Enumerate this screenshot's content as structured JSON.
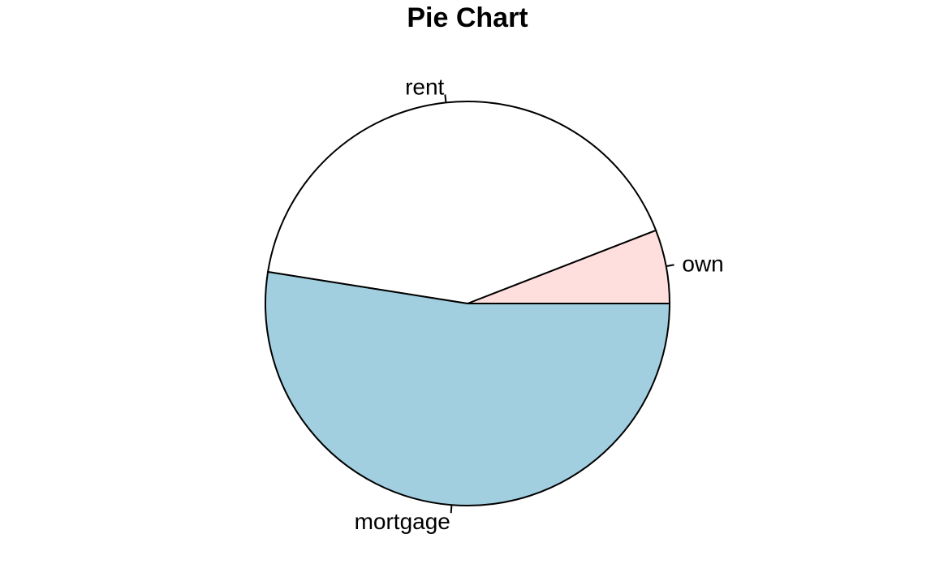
{
  "chart_data": {
    "type": "pie",
    "title": "Pie Chart",
    "slices": [
      {
        "label": "own",
        "value": 5.9,
        "color": "#FFDEDE"
      },
      {
        "label": "rent",
        "value": 41.6,
        "color": "#FFFFFF"
      },
      {
        "label": "mortgage",
        "value": 52.5,
        "color": "#A1CFE0"
      }
    ],
    "start_angle_deg": 0,
    "direction": "counterclockwise"
  }
}
